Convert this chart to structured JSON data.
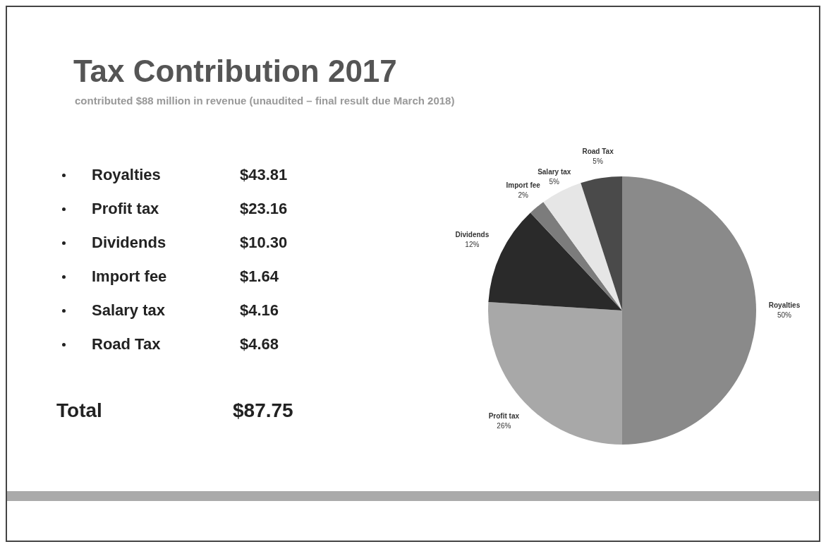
{
  "chart_data": [
    {
      "type": "other",
      "categories": [
        "Royalties",
        "Profit tax",
        "Dividends",
        "Import fee",
        "Salary tax",
        "Road Tax"
      ],
      "value_labels": [
        "$43.81",
        "$23.16",
        "$10.30",
        "$1.64",
        "$4.16",
        "$4.68"
      ],
      "annotations": [
        "Total",
        "$87.75"
      ]
    },
    {
      "type": "pie",
      "title": "Tax Contribution 2017",
      "subtitle": "contributed $88 million in revenue (unaudited – final result due March 2018)",
      "categories": [
        "Royalties",
        "Profit tax",
        "Dividends",
        "Import fee",
        "Salary tax",
        "Road Tax"
      ],
      "values": [
        50,
        26,
        12,
        2,
        5,
        5
      ],
      "colors": [
        "#8a8a8a",
        "#a8a8a8",
        "#2a2a2a",
        "#7c7c7c",
        "#e6e6e6",
        "#4a4a4a"
      ],
      "value_labels": [
        "50%",
        "26%",
        "12%",
        "2%",
        "5%",
        "5%"
      ],
      "legend": false
    }
  ]
}
